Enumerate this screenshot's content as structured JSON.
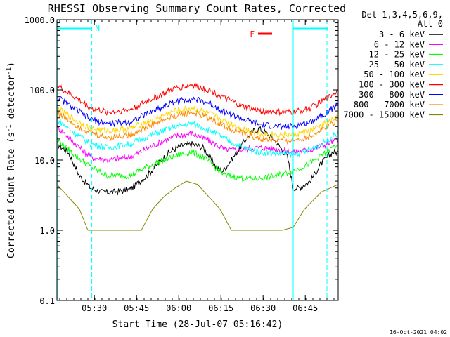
{
  "chart_data": {
    "type": "line",
    "title": "RHESSI Observing Summary Count Rates, Corrected",
    "xlabel": "Start Time (28-Jul-07 05:16:42)",
    "ylabel_main": "Corrected Count Rate (s",
    "ylabel_sup1": "-1",
    "ylabel_mid": " detector",
    "ylabel_sup2": "-1",
    "ylabel_end": ")",
    "y_scale": "log",
    "ylim": [
      0.1,
      1000
    ],
    "xlim_minutes": [
      0,
      100
    ],
    "x_ticks": [
      {
        "label": "05:30",
        "m": 13.3
      },
      {
        "label": "05:45",
        "m": 28.3
      },
      {
        "label": "06:00",
        "m": 43.3
      },
      {
        "label": "06:15",
        "m": 58.3
      },
      {
        "label": "06:30",
        "m": 73.3
      },
      {
        "label": "06:45",
        "m": 88.3
      }
    ],
    "y_ticks": [
      {
        "label": "1000.0",
        "v": 1000
      },
      {
        "label": "100.0",
        "v": 100
      },
      {
        "label": "10.0",
        "v": 10
      },
      {
        "label": "1.0",
        "v": 1
      },
      {
        "label": "0.1",
        "v": 0.1
      }
    ],
    "legend_header": [
      "Det 1,3,4,5,6,9,",
      "Att 0"
    ],
    "legend_position": "right",
    "series": [
      {
        "name": "3 - 6 keV",
        "color": "#000000",
        "points": [
          [
            0,
            17
          ],
          [
            4,
            13
          ],
          [
            8,
            6
          ],
          [
            12,
            4
          ],
          [
            16,
            3.5
          ],
          [
            20,
            3.5
          ],
          [
            26,
            3.8
          ],
          [
            32,
            6
          ],
          [
            36,
            9
          ],
          [
            40,
            13
          ],
          [
            44,
            16
          ],
          [
            48,
            17
          ],
          [
            52,
            15
          ],
          [
            55,
            10
          ],
          [
            57,
            7.5
          ],
          [
            59,
            7
          ],
          [
            62,
            10
          ],
          [
            66,
            17
          ],
          [
            68,
            22
          ],
          [
            70,
            26
          ],
          [
            72,
            28
          ],
          [
            74,
            25
          ],
          [
            76,
            22
          ],
          [
            79,
            16
          ],
          [
            82,
            11
          ],
          [
            84,
            4
          ],
          [
            86,
            4
          ],
          [
            90,
            5
          ],
          [
            94,
            9
          ],
          [
            98,
            13
          ]
        ]
      },
      {
        "name": "6 - 12 keV",
        "color": "#ff00ff",
        "points": [
          [
            0,
            30
          ],
          [
            6,
            18
          ],
          [
            12,
            11
          ],
          [
            18,
            10
          ],
          [
            26,
            11
          ],
          [
            34,
            16
          ],
          [
            42,
            22
          ],
          [
            48,
            24
          ],
          [
            54,
            19
          ],
          [
            60,
            14
          ],
          [
            66,
            14
          ],
          [
            70,
            15
          ],
          [
            74,
            15
          ],
          [
            80,
            14
          ],
          [
            84,
            13
          ],
          [
            90,
            14
          ],
          [
            96,
            17
          ],
          [
            100,
            20
          ]
        ]
      },
      {
        "name": "12 - 25 keV",
        "color": "#00ff00",
        "points": [
          [
            0,
            20
          ],
          [
            6,
            12
          ],
          [
            12,
            8
          ],
          [
            18,
            6
          ],
          [
            26,
            6
          ],
          [
            32,
            8
          ],
          [
            38,
            10
          ],
          [
            44,
            12
          ],
          [
            48,
            13
          ],
          [
            52,
            11
          ],
          [
            56,
            8
          ],
          [
            60,
            6
          ],
          [
            66,
            5.5
          ],
          [
            72,
            5.5
          ],
          [
            78,
            6
          ],
          [
            84,
            7
          ],
          [
            90,
            9
          ],
          [
            96,
            13
          ],
          [
            100,
            17
          ]
        ]
      },
      {
        "name": "25 - 50 keV",
        "color": "#00ffff",
        "points": [
          [
            0,
            38
          ],
          [
            6,
            25
          ],
          [
            12,
            17
          ],
          [
            18,
            15
          ],
          [
            26,
            17
          ],
          [
            34,
            23
          ],
          [
            42,
            30
          ],
          [
            48,
            33
          ],
          [
            54,
            27
          ],
          [
            60,
            20
          ],
          [
            66,
            15
          ],
          [
            72,
            13
          ],
          [
            78,
            12.5
          ],
          [
            84,
            12
          ],
          [
            90,
            14
          ],
          [
            96,
            19
          ],
          [
            100,
            25
          ]
        ]
      },
      {
        "name": "50 - 100 keV",
        "color": "#ffd700",
        "points": [
          [
            0,
            55
          ],
          [
            6,
            38
          ],
          [
            12,
            28
          ],
          [
            18,
            26
          ],
          [
            26,
            28
          ],
          [
            34,
            38
          ],
          [
            42,
            50
          ],
          [
            48,
            55
          ],
          [
            54,
            46
          ],
          [
            60,
            35
          ],
          [
            66,
            28
          ],
          [
            72,
            24
          ],
          [
            78,
            23
          ],
          [
            84,
            23
          ],
          [
            90,
            26
          ],
          [
            96,
            34
          ],
          [
            100,
            42
          ]
        ]
      },
      {
        "name": "100 - 300 keV",
        "color": "#ff0000",
        "points": [
          [
            0,
            115
          ],
          [
            6,
            80
          ],
          [
            12,
            55
          ],
          [
            18,
            48
          ],
          [
            26,
            52
          ],
          [
            34,
            75
          ],
          [
            42,
            105
          ],
          [
            48,
            118
          ],
          [
            54,
            100
          ],
          [
            60,
            75
          ],
          [
            66,
            58
          ],
          [
            72,
            50
          ],
          [
            78,
            48
          ],
          [
            84,
            48
          ],
          [
            90,
            55
          ],
          [
            96,
            75
          ],
          [
            100,
            100
          ]
        ]
      },
      {
        "name": "300 - 800 keV",
        "color": "#0000ff",
        "points": [
          [
            0,
            80
          ],
          [
            6,
            55
          ],
          [
            12,
            38
          ],
          [
            18,
            33
          ],
          [
            26,
            35
          ],
          [
            34,
            50
          ],
          [
            42,
            68
          ],
          [
            48,
            75
          ],
          [
            54,
            65
          ],
          [
            60,
            48
          ],
          [
            66,
            38
          ],
          [
            72,
            32
          ],
          [
            78,
            30
          ],
          [
            84,
            30
          ],
          [
            90,
            35
          ],
          [
            96,
            48
          ],
          [
            100,
            62
          ]
        ]
      },
      {
        "name": "800 - 7000 keV",
        "color": "#ff8800",
        "points": [
          [
            0,
            48
          ],
          [
            6,
            33
          ],
          [
            12,
            24
          ],
          [
            18,
            21
          ],
          [
            26,
            23
          ],
          [
            34,
            32
          ],
          [
            42,
            43
          ],
          [
            48,
            48
          ],
          [
            54,
            40
          ],
          [
            60,
            30
          ],
          [
            66,
            24
          ],
          [
            72,
            20
          ],
          [
            78,
            19
          ],
          [
            84,
            19
          ],
          [
            90,
            22
          ],
          [
            96,
            30
          ],
          [
            100,
            38
          ]
        ]
      },
      {
        "name": "7000 - 15000 keV",
        "color": "#888800",
        "points": [
          [
            0,
            4.5
          ],
          [
            4,
            3
          ],
          [
            8,
            2
          ],
          [
            11,
            1
          ],
          [
            16,
            1
          ],
          [
            22,
            1
          ],
          [
            30,
            1
          ],
          [
            34,
            2
          ],
          [
            38,
            3
          ],
          [
            42,
            4
          ],
          [
            46,
            5
          ],
          [
            50,
            4.5
          ],
          [
            54,
            3
          ],
          [
            58,
            2
          ],
          [
            62,
            1
          ],
          [
            68,
            1
          ],
          [
            74,
            1
          ],
          [
            80,
            1
          ],
          [
            84,
            1.1
          ],
          [
            88,
            2
          ],
          [
            94,
            3.5
          ],
          [
            100,
            4.5
          ]
        ]
      }
    ],
    "annotations": {
      "n_label": "N",
      "f_label": "F"
    }
  },
  "footer_date": "16-Oct-2021 04:02"
}
